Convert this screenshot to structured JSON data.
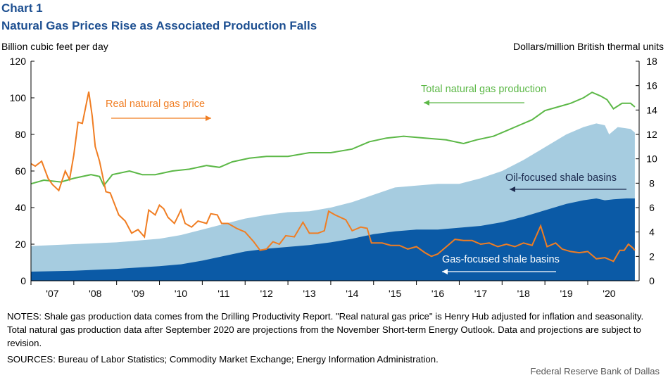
{
  "header": {
    "chart_number": "Chart 1",
    "title": "Natural Gas Prices Rise as Associated Production Falls"
  },
  "notes": "NOTES: Shale gas production data comes from the Drilling Productivity Report. \"Real natural gas price\" is Henry Hub adjusted for inflation and seasonality. Total natural gas production data after September 2020 are projections from the November Short-term Energy Outlook. Data and projections are subject to revision.",
  "sources": "SOURCES: Bureau of Labor Statistics; Commodity Market Exchange; Energy Information Administration.",
  "credit": "Federal Reserve Bank of Dallas",
  "colors": {
    "gas_focused": "#0b5aa6",
    "oil_focused": "#a6cce0",
    "total_production": "#5cb847",
    "price": "#f07d22"
  },
  "chart_data": {
    "type": "area",
    "title": "Natural Gas Prices Rise as Associated Production Falls",
    "ylabel": "Billion cubic feet per day",
    "y2label": "Dollars/million  British thermal  units",
    "ylim": [
      0,
      120
    ],
    "y2lim": [
      0,
      18
    ],
    "yticks": [
      "0",
      "20",
      "40",
      "60",
      "80",
      "100",
      "120"
    ],
    "y2ticks": [
      "0",
      "2",
      "4",
      "6",
      "8",
      "10",
      "12",
      "14",
      "16",
      "18"
    ],
    "xlim": [
      2006.5,
      2020.7
    ],
    "xticks": [
      {
        "x": 2007,
        "label": "'07"
      },
      {
        "x": 2008,
        "label": "'08"
      },
      {
        "x": 2009,
        "label": "'09"
      },
      {
        "x": 2010,
        "label": "'10"
      },
      {
        "x": 2011,
        "label": "'11"
      },
      {
        "x": 2012,
        "label": "'12"
      },
      {
        "x": 2013,
        "label": "'13"
      },
      {
        "x": 2014,
        "label": "'14"
      },
      {
        "x": 2015,
        "label": "'15"
      },
      {
        "x": 2016,
        "label": "'16"
      },
      {
        "x": 2017,
        "label": "'17"
      },
      {
        "x": 2018,
        "label": "'18"
      },
      {
        "x": 2019,
        "label": "'19"
      },
      {
        "x": 2020,
        "label": "'20"
      }
    ],
    "series": [
      {
        "name": "Gas-focused shale basins",
        "kind": "area",
        "axis": "left",
        "points": [
          [
            2006.5,
            5
          ],
          [
            2007.5,
            5.5
          ],
          [
            2008.5,
            6.5
          ],
          [
            2009.5,
            8
          ],
          [
            2010,
            9
          ],
          [
            2010.5,
            11
          ],
          [
            2011,
            13.5
          ],
          [
            2011.5,
            16
          ],
          [
            2012,
            17.5
          ],
          [
            2012.5,
            18.5
          ],
          [
            2013,
            19.5
          ],
          [
            2013.5,
            21
          ],
          [
            2014,
            23
          ],
          [
            2014.5,
            25.5
          ],
          [
            2015,
            27
          ],
          [
            2015.5,
            28
          ],
          [
            2016,
            28
          ],
          [
            2016.5,
            29
          ],
          [
            2017,
            30
          ],
          [
            2017.5,
            32
          ],
          [
            2018,
            35
          ],
          [
            2018.5,
            38.5
          ],
          [
            2019,
            42
          ],
          [
            2019.4,
            44
          ],
          [
            2019.7,
            45
          ],
          [
            2019.9,
            44
          ],
          [
            2020.1,
            44.5
          ],
          [
            2020.4,
            45
          ],
          [
            2020.6,
            45
          ]
        ]
      },
      {
        "name": "Oil-focused shale basins",
        "kind": "area",
        "axis": "left",
        "points": [
          [
            2006.5,
            19
          ],
          [
            2007.5,
            20
          ],
          [
            2008.5,
            21
          ],
          [
            2009.5,
            23
          ],
          [
            2010,
            25
          ],
          [
            2010.5,
            28
          ],
          [
            2011,
            31
          ],
          [
            2011.5,
            34
          ],
          [
            2012,
            36
          ],
          [
            2012.5,
            37.5
          ],
          [
            2013,
            38
          ],
          [
            2013.5,
            40
          ],
          [
            2014,
            43
          ],
          [
            2014.5,
            47
          ],
          [
            2015,
            51
          ],
          [
            2015.5,
            52
          ],
          [
            2016,
            53
          ],
          [
            2016.5,
            53
          ],
          [
            2017,
            56
          ],
          [
            2017.5,
            60
          ],
          [
            2018,
            66
          ],
          [
            2018.5,
            73
          ],
          [
            2019,
            80
          ],
          [
            2019.4,
            84
          ],
          [
            2019.7,
            86
          ],
          [
            2019.9,
            85
          ],
          [
            2020,
            80
          ],
          [
            2020.2,
            84
          ],
          [
            2020.5,
            83
          ],
          [
            2020.6,
            81
          ]
        ]
      },
      {
        "name": "Total natural gas production",
        "kind": "line",
        "axis": "left",
        "points": [
          [
            2006.5,
            53
          ],
          [
            2006.8,
            55
          ],
          [
            2007.2,
            54
          ],
          [
            2007.5,
            56
          ],
          [
            2007.9,
            58
          ],
          [
            2008.1,
            57
          ],
          [
            2008.2,
            52
          ],
          [
            2008.4,
            58
          ],
          [
            2008.8,
            60
          ],
          [
            2009.1,
            58
          ],
          [
            2009.4,
            58
          ],
          [
            2009.8,
            60
          ],
          [
            2010.2,
            61
          ],
          [
            2010.6,
            63
          ],
          [
            2010.9,
            62
          ],
          [
            2011.2,
            65
          ],
          [
            2011.6,
            67
          ],
          [
            2012.0,
            68
          ],
          [
            2012.5,
            68
          ],
          [
            2013.0,
            70
          ],
          [
            2013.5,
            70
          ],
          [
            2014.0,
            72
          ],
          [
            2014.4,
            76
          ],
          [
            2014.8,
            78
          ],
          [
            2015.2,
            79
          ],
          [
            2015.7,
            78
          ],
          [
            2016.2,
            77
          ],
          [
            2016.6,
            75
          ],
          [
            2016.9,
            77
          ],
          [
            2017.3,
            79
          ],
          [
            2017.6,
            82
          ],
          [
            2017.9,
            85
          ],
          [
            2018.2,
            88
          ],
          [
            2018.5,
            93
          ],
          [
            2018.8,
            95
          ],
          [
            2019.1,
            97
          ],
          [
            2019.4,
            100
          ],
          [
            2019.6,
            103
          ],
          [
            2019.8,
            101
          ],
          [
            2019.95,
            99
          ],
          [
            2020.1,
            94
          ],
          [
            2020.3,
            97
          ],
          [
            2020.5,
            97
          ],
          [
            2020.6,
            95
          ]
        ]
      },
      {
        "name": "Real natural gas price",
        "kind": "line",
        "axis": "right",
        "points": [
          [
            2006.5,
            9.6
          ],
          [
            2006.6,
            9.4
          ],
          [
            2006.75,
            9.8
          ],
          [
            2006.9,
            8.4
          ],
          [
            2007.0,
            7.9
          ],
          [
            2007.15,
            7.4
          ],
          [
            2007.3,
            9.0
          ],
          [
            2007.4,
            8.3
          ],
          [
            2007.5,
            10.3
          ],
          [
            2007.6,
            13.0
          ],
          [
            2007.7,
            12.9
          ],
          [
            2007.85,
            15.5
          ],
          [
            2007.93,
            13.5
          ],
          [
            2008.0,
            11.0
          ],
          [
            2008.1,
            9.8
          ],
          [
            2008.25,
            7.3
          ],
          [
            2008.35,
            7.2
          ],
          [
            2008.55,
            5.4
          ],
          [
            2008.7,
            4.9
          ],
          [
            2008.85,
            3.9
          ],
          [
            2009.0,
            4.2
          ],
          [
            2009.15,
            3.6
          ],
          [
            2009.25,
            5.8
          ],
          [
            2009.4,
            5.4
          ],
          [
            2009.5,
            6.2
          ],
          [
            2009.6,
            5.9
          ],
          [
            2009.7,
            5.2
          ],
          [
            2009.85,
            4.7
          ],
          [
            2010.0,
            5.8
          ],
          [
            2010.1,
            4.7
          ],
          [
            2010.25,
            4.4
          ],
          [
            2010.4,
            4.9
          ],
          [
            2010.6,
            4.7
          ],
          [
            2010.7,
            5.5
          ],
          [
            2010.85,
            5.4
          ],
          [
            2010.95,
            4.7
          ],
          [
            2011.1,
            4.7
          ],
          [
            2011.3,
            4.3
          ],
          [
            2011.5,
            4.0
          ],
          [
            2011.7,
            3.2
          ],
          [
            2011.85,
            2.5
          ],
          [
            2012.0,
            2.6
          ],
          [
            2012.15,
            3.2
          ],
          [
            2012.3,
            3.0
          ],
          [
            2012.45,
            3.7
          ],
          [
            2012.65,
            3.6
          ],
          [
            2012.85,
            4.8
          ],
          [
            2013.0,
            3.9
          ],
          [
            2013.2,
            3.9
          ],
          [
            2013.35,
            4.1
          ],
          [
            2013.45,
            5.7
          ],
          [
            2013.6,
            5.4
          ],
          [
            2013.85,
            5.0
          ],
          [
            2014.0,
            4.1
          ],
          [
            2014.2,
            4.4
          ],
          [
            2014.35,
            4.3
          ],
          [
            2014.45,
            3.1
          ],
          [
            2014.7,
            3.1
          ],
          [
            2014.9,
            2.9
          ],
          [
            2015.1,
            2.9
          ],
          [
            2015.3,
            2.6
          ],
          [
            2015.5,
            2.8
          ],
          [
            2015.7,
            2.3
          ],
          [
            2015.85,
            2.0
          ],
          [
            2016.0,
            2.2
          ],
          [
            2016.2,
            2.8
          ],
          [
            2016.4,
            3.4
          ],
          [
            2016.6,
            3.3
          ],
          [
            2016.8,
            3.3
          ],
          [
            2017.0,
            3.0
          ],
          [
            2017.2,
            3.1
          ],
          [
            2017.4,
            2.8
          ],
          [
            2017.6,
            3.0
          ],
          [
            2017.8,
            2.8
          ],
          [
            2018.0,
            3.1
          ],
          [
            2018.2,
            2.9
          ],
          [
            2018.4,
            4.5
          ],
          [
            2018.55,
            2.8
          ],
          [
            2018.75,
            3.1
          ],
          [
            2018.9,
            2.6
          ],
          [
            2019.1,
            2.4
          ],
          [
            2019.3,
            2.3
          ],
          [
            2019.5,
            2.4
          ],
          [
            2019.7,
            1.8
          ],
          [
            2019.9,
            1.9
          ],
          [
            2020.1,
            1.6
          ],
          [
            2020.25,
            2.5
          ],
          [
            2020.35,
            2.5
          ],
          [
            2020.45,
            3.0
          ],
          [
            2020.55,
            2.7
          ],
          [
            2020.6,
            2.5
          ]
        ]
      }
    ],
    "annotations": [
      {
        "text": "Real natural  gas price",
        "color": "#f07d22"
      },
      {
        "text": "Total natural gas production",
        "color": "#5cb847"
      },
      {
        "text": "Oil-focused shale basins",
        "color": "#1d2b4f"
      },
      {
        "text": "Gas-focused shale basins",
        "color": "#ffffff"
      }
    ],
    "grid": false,
    "legend": "none (in-chart annotations)"
  }
}
